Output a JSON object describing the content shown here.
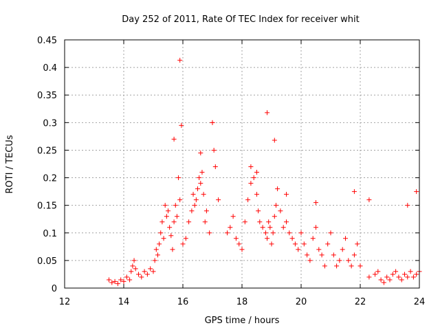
{
  "chart_data": {
    "type": "scatter",
    "title": "Day 252 of 2011, Rate Of TEC Index for receiver whit",
    "xlabel": "GPS time / hours",
    "ylabel": "ROTI / TECUs",
    "xlim": [
      12,
      24
    ],
    "ylim": [
      0,
      0.45
    ],
    "xticks": [
      "12",
      "14",
      "16",
      "18",
      "20",
      "22",
      "24"
    ],
    "yticks": [
      "0",
      "0.05",
      "0.1",
      "0.15",
      "0.2",
      "0.25",
      "0.3",
      "0.35",
      "0.4",
      "0.45"
    ],
    "grid": true,
    "marker": "+",
    "color": "#ff0000",
    "series": [
      {
        "x": [
          13.5,
          13.6,
          13.7,
          13.8,
          13.9,
          14.0,
          14.1,
          14.2,
          14.25,
          14.3,
          14.35,
          14.4,
          14.5,
          14.6,
          14.7,
          14.8,
          14.9,
          15.0,
          15.05,
          15.1,
          15.15,
          15.2,
          15.25,
          15.3,
          15.35,
          15.4,
          15.45,
          15.5,
          15.55,
          15.6,
          15.65,
          15.7,
          15.75,
          15.8,
          15.85,
          15.9,
          15.95,
          16.0,
          16.1,
          16.2,
          16.3,
          16.35,
          16.4,
          16.45,
          16.5,
          16.55,
          16.6,
          16.65,
          16.7,
          16.75,
          16.8,
          16.9,
          17.0,
          17.05,
          17.1,
          17.2,
          17.5,
          17.6,
          17.7,
          17.8,
          17.9,
          18.0,
          18.1,
          18.2,
          18.3,
          18.4,
          18.5,
          18.55,
          18.6,
          18.7,
          18.8,
          18.85,
          18.9,
          18.95,
          19.0,
          19.05,
          19.1,
          19.15,
          19.2,
          19.3,
          19.4,
          19.5,
          19.6,
          19.7,
          19.8,
          19.9,
          20.0,
          20.1,
          20.2,
          20.3,
          20.4,
          20.5,
          20.6,
          20.7,
          20.8,
          20.9,
          21.0,
          21.1,
          21.2,
          21.3,
          21.4,
          21.5,
          21.6,
          21.7,
          21.8,
          21.9,
          22.0,
          22.3,
          22.5,
          22.6,
          22.7,
          22.8,
          22.9,
          23.0,
          23.1,
          23.2,
          23.3,
          23.4,
          23.5,
          23.6,
          23.7,
          23.8,
          23.9,
          24.0
        ],
        "y": [
          0.015,
          0.01,
          0.012,
          0.008,
          0.015,
          0.012,
          0.02,
          0.015,
          0.03,
          0.04,
          0.05,
          0.035,
          0.025,
          0.02,
          0.03,
          0.025,
          0.035,
          0.03,
          0.05,
          0.07,
          0.06,
          0.08,
          0.1,
          0.12,
          0.09,
          0.15,
          0.13,
          0.14,
          0.11,
          0.095,
          0.07,
          0.12,
          0.15,
          0.13,
          0.2,
          0.16,
          0.295,
          0.08,
          0.09,
          0.12,
          0.14,
          0.17,
          0.15,
          0.16,
          0.18,
          0.2,
          0.19,
          0.21,
          0.17,
          0.12,
          0.14,
          0.1,
          0.3,
          0.25,
          0.22,
          0.16,
          0.1,
          0.11,
          0.13,
          0.09,
          0.08,
          0.07,
          0.12,
          0.16,
          0.19,
          0.2,
          0.17,
          0.14,
          0.12,
          0.11,
          0.1,
          0.09,
          0.12,
          0.11,
          0.08,
          0.1,
          0.13,
          0.15,
          0.18,
          0.14,
          0.11,
          0.12,
          0.1,
          0.09,
          0.08,
          0.07,
          0.1,
          0.08,
          0.06,
          0.05,
          0.09,
          0.11,
          0.07,
          0.06,
          0.04,
          0.08,
          0.1,
          0.06,
          0.04,
          0.05,
          0.07,
          0.09,
          0.05,
          0.04,
          0.06,
          0.08,
          0.04,
          0.02,
          0.025,
          0.03,
          0.015,
          0.01,
          0.02,
          0.015,
          0.025,
          0.03,
          0.02,
          0.015,
          0.025,
          0.02,
          0.03,
          0.02,
          0.025,
          0.03
        ]
      },
      {
        "x": [
          15.9,
          17.0,
          18.85,
          19.1,
          15.7,
          16.6,
          18.3,
          18.5,
          19.5,
          20.5,
          21.8,
          22.3,
          23.6,
          23.9
        ],
        "y": [
          0.413,
          0.3,
          0.318,
          0.268,
          0.27,
          0.245,
          0.22,
          0.21,
          0.17,
          0.155,
          0.175,
          0.16,
          0.15,
          0.175
        ]
      }
    ]
  }
}
